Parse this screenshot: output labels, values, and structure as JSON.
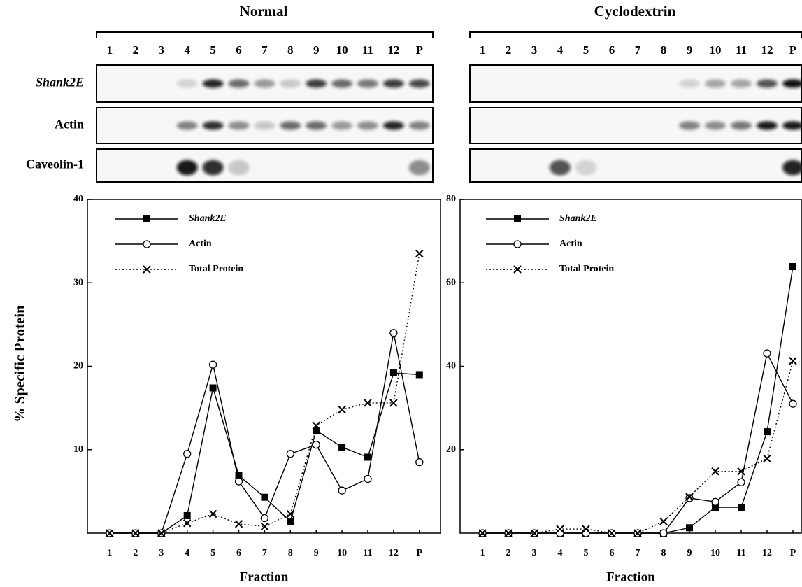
{
  "chart_data": [
    {
      "type": "line",
      "title": "Normal",
      "xlabel": "Fraction",
      "ylabel": "% Specific Protein",
      "blot_rows": [
        "Shank2E",
        "Actin",
        "Caveolin-1"
      ],
      "categories": [
        "1",
        "2",
        "3",
        "4",
        "5",
        "6",
        "7",
        "8",
        "9",
        "10",
        "11",
        "12",
        "P"
      ],
      "ylim": [
        0,
        40
      ],
      "yticks": [
        10,
        20,
        30,
        40
      ],
      "legend": "upper left",
      "series": [
        {
          "name": "Shank2E",
          "color": "#000000",
          "marker": "square",
          "linestyle": "solid",
          "values": [
            0,
            0,
            0,
            2.1,
            17.4,
            6.9,
            4.3,
            1.4,
            12.3,
            10.3,
            9.1,
            19.2,
            19.0
          ]
        },
        {
          "name": "Actin",
          "color": "#000000",
          "marker": "circle",
          "linestyle": "solid",
          "values": [
            0,
            0,
            0,
            9.5,
            20.2,
            6.2,
            1.8,
            9.5,
            10.6,
            5.1,
            6.5,
            24.0,
            8.5
          ]
        },
        {
          "name": "Total Protein",
          "color": "#000000",
          "marker": "x",
          "linestyle": "dotted",
          "values": [
            0,
            0,
            0,
            1.2,
            2.3,
            1.1,
            0.8,
            2.3,
            12.9,
            14.8,
            15.6,
            15.6,
            33.5
          ]
        }
      ]
    },
    {
      "type": "line",
      "title": "Cyclodextrin",
      "xlabel": "Fraction",
      "categories": [
        "1",
        "2",
        "3",
        "4",
        "5",
        "6",
        "7",
        "8",
        "9",
        "10",
        "11",
        "12",
        "P"
      ],
      "ylim": [
        0,
        80
      ],
      "yticks": [
        20,
        40,
        60,
        80
      ],
      "legend": "upper left",
      "series": [
        {
          "name": "Shank2E",
          "color": "#000000",
          "marker": "square",
          "linestyle": "solid",
          "values": [
            0,
            0,
            0,
            0,
            0,
            0,
            0,
            0,
            1.3,
            6.2,
            6.2,
            24.3,
            63.9
          ]
        },
        {
          "name": "Actin",
          "color": "#000000",
          "marker": "circle",
          "linestyle": "solid",
          "values": [
            0,
            0,
            0,
            0,
            0,
            0,
            0,
            0,
            8.4,
            7.5,
            12.2,
            43.1,
            31.0
          ]
        },
        {
          "name": "Total Protein",
          "color": "#000000",
          "marker": "x",
          "linestyle": "dotted",
          "values": [
            0,
            0,
            0,
            1.0,
            1.0,
            0,
            0,
            2.8,
            8.7,
            14.8,
            14.8,
            17.9,
            41.3
          ]
        }
      ]
    }
  ]
}
